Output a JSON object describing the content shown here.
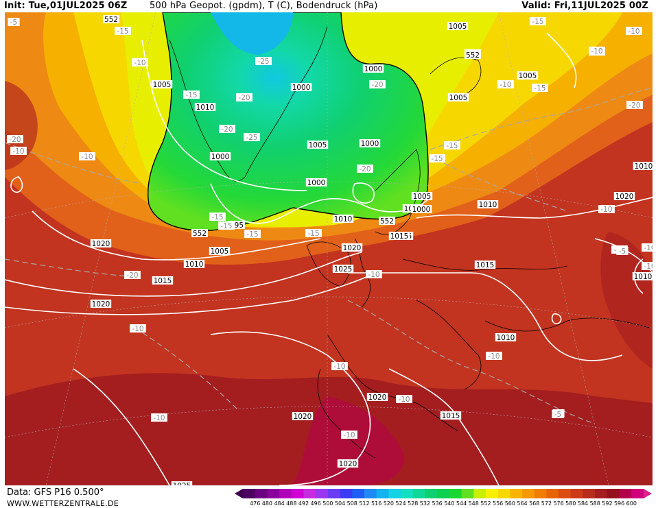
{
  "header": {
    "init": "Init: Tue,01JUL2025 06Z",
    "title": "500 hPa Geopot. (gpdm), T (C), Bodendruck (hPa)",
    "valid": "Valid: Fri,11JUL2025 00Z"
  },
  "footer": {
    "data_source": "Data: GFS P16 0.500°",
    "site": "WWW.WETTERZENTRALE.DE"
  },
  "colorbar": {
    "ticks": [
      "476",
      "480",
      "484",
      "488",
      "492",
      "496",
      "500",
      "504",
      "508",
      "512",
      "516",
      "520",
      "524",
      "528",
      "532",
      "536",
      "540",
      "544",
      "548",
      "552",
      "556",
      "560",
      "564",
      "568",
      "572",
      "576",
      "580",
      "584",
      "588",
      "592",
      "596",
      "600"
    ],
    "colors": [
      "#4b0060",
      "#6a007f",
      "#8a009c",
      "#b000b8",
      "#d000d6",
      "#c82ae0",
      "#9b37f0",
      "#6a3df5",
      "#3b3cf5",
      "#1f5ef5",
      "#1f8af5",
      "#13b2f0",
      "#13d2e6",
      "#12e0c0",
      "#10d898",
      "#0ed070",
      "#0cd050",
      "#18d830",
      "#60e020",
      "#c8f000",
      "#f8f000",
      "#f8d800",
      "#f8b400",
      "#f89800",
      "#f07c00",
      "#e86400",
      "#dc4c10",
      "#cc3a18",
      "#b82c1c",
      "#a41e20",
      "#94101c",
      "#b4004c",
      "#d0007c"
    ]
  },
  "map": {
    "pressure_labels": [
      "552",
      "1005",
      "1000",
      "1005",
      "1005",
      "1000",
      "1005",
      "1010",
      "552",
      "1005",
      "1000",
      "1000",
      "552",
      "1005",
      "1000",
      "1005",
      "1010",
      "1010",
      "1010",
      "1020",
      "552",
      "995",
      "1010",
      "1015",
      "1005",
      "1010",
      "1020",
      "1025",
      "1015",
      "1015",
      "1010",
      "1020",
      "1020",
      "1020",
      "1015",
      "1020",
      "1020",
      "1025",
      "552",
      "1010",
      "1000",
      "1015"
    ],
    "temp_labels": [
      "-15",
      "-15",
      "-10",
      "-15",
      "-25",
      "-20",
      "-20",
      "-15",
      "-25",
      "-20",
      "-20",
      "-15",
      "-15",
      "-10",
      "-10",
      "-20",
      "-20",
      "-20",
      "-15",
      "-15",
      "-10",
      "-10",
      "-10",
      "-10",
      "-10",
      "-15",
      "-5",
      "-10",
      "-10",
      "-5",
      "-10",
      "-15",
      "-10",
      "-10",
      "-10",
      "-15",
      "-5",
      "-10",
      "-10",
      "-5",
      "-10"
    ]
  }
}
